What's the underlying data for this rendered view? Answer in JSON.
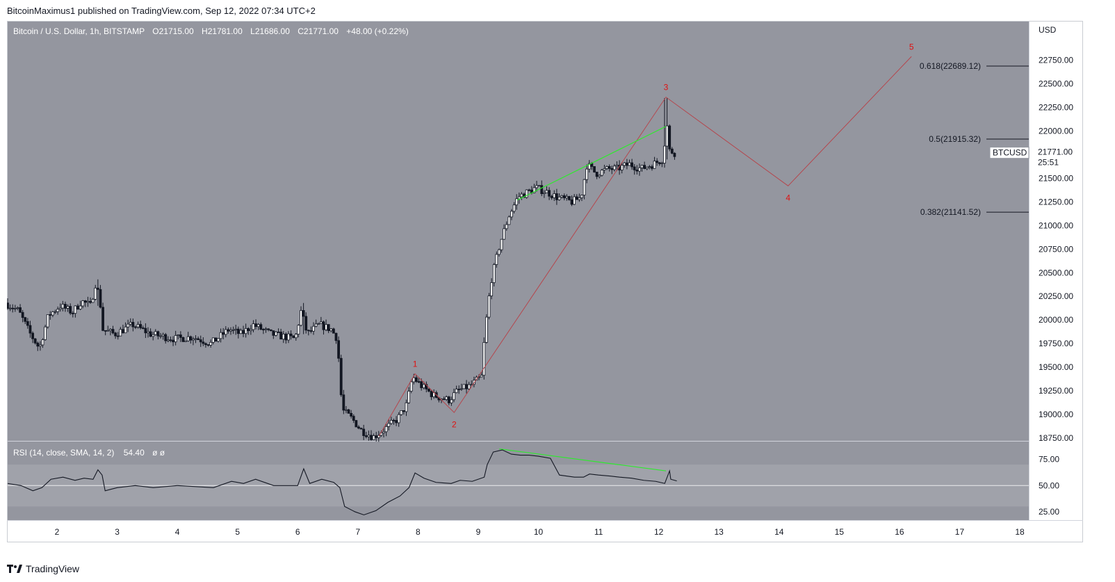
{
  "publisher": "BitcoinMaximus1 published on TradingView.com, Sep 12, 2022 07:34 UTC+2",
  "brand": {
    "label": "TradingView",
    "icon": "tradingview-logo-icon"
  },
  "legend": {
    "symbol": "Bitcoin / U.S. Dollar, 1h, BITSTAMP",
    "o_label": "O",
    "o_value": "21715.00",
    "h_label": "H",
    "h_value": "21781.00",
    "l_label": "L",
    "l_value": "21686.00",
    "c_label": "C",
    "c_value": "21771.00",
    "change": "+48.00 (+0.22%)"
  },
  "colors": {
    "pane_bg": "#94969f",
    "rsi_band": "#a0a2aa",
    "candle": "#131722",
    "wave": "#b5464d",
    "wave_label": "#e01010",
    "divergence": "#2eea2e",
    "grid_text": "#131722"
  },
  "chart_data": {
    "type": "candlestick",
    "title": "Bitcoin / U.S. Dollar, 1h, BITSTAMP",
    "currency_label": "USD",
    "price_axis": {
      "range": [
        18720,
        23160
      ],
      "ticks": [
        "18750.00",
        "19000.00",
        "19250.00",
        "19500.00",
        "19750.00",
        "20000.00",
        "20250.00",
        "20500.00",
        "20750.00",
        "21000.00",
        "21250.00",
        "21500.00",
        "21750.00",
        "22000.00",
        "22250.00",
        "22500.00",
        "22750.00"
      ]
    },
    "x_axis": {
      "range": [
        1.18,
        18.15
      ],
      "ticks": [
        "2",
        "3",
        "4",
        "5",
        "6",
        "7",
        "8",
        "9",
        "10",
        "11",
        "12",
        "13",
        "14",
        "15",
        "16",
        "17",
        "18"
      ]
    },
    "last_price": {
      "symbol": "BTCUSD",
      "value": "21771.00",
      "countdown": "25:51",
      "price": 21771
    },
    "price_path": [
      [
        1.18,
        20180
      ],
      [
        1.4,
        20100
      ],
      [
        1.6,
        19850
      ],
      [
        1.75,
        19700
      ],
      [
        1.9,
        20050
      ],
      [
        2.1,
        20150
      ],
      [
        2.3,
        20080
      ],
      [
        2.45,
        20200
      ],
      [
        2.6,
        20150
      ],
      [
        2.68,
        20380
      ],
      [
        2.75,
        20250
      ],
      [
        2.8,
        19900
      ],
      [
        3.0,
        19850
      ],
      [
        3.3,
        19950
      ],
      [
        3.6,
        19850
      ],
      [
        4.0,
        19800
      ],
      [
        4.3,
        19820
      ],
      [
        4.6,
        19750
      ],
      [
        4.9,
        19900
      ],
      [
        5.1,
        19850
      ],
      [
        5.3,
        19950
      ],
      [
        5.6,
        19850
      ],
      [
        6.0,
        19800
      ],
      [
        6.1,
        20100
      ],
      [
        6.2,
        19850
      ],
      [
        6.4,
        19950
      ],
      [
        6.6,
        19900
      ],
      [
        6.7,
        19800
      ],
      [
        6.78,
        19050
      ],
      [
        6.95,
        18950
      ],
      [
        7.1,
        18830
      ],
      [
        7.3,
        18760
      ],
      [
        7.5,
        18850
      ],
      [
        7.7,
        18950
      ],
      [
        7.85,
        19100
      ],
      [
        7.95,
        19400
      ],
      [
        8.1,
        19300
      ],
      [
        8.3,
        19200
      ],
      [
        8.55,
        19150
      ],
      [
        8.7,
        19250
      ],
      [
        8.9,
        19300
      ],
      [
        9.1,
        19400
      ],
      [
        9.15,
        19850
      ],
      [
        9.25,
        20400
      ],
      [
        9.4,
        20800
      ],
      [
        9.55,
        21100
      ],
      [
        9.7,
        21300
      ],
      [
        9.85,
        21350
      ],
      [
        10.0,
        21400
      ],
      [
        10.2,
        21350
      ],
      [
        10.35,
        21300
      ],
      [
        10.6,
        21250
      ],
      [
        10.75,
        21300
      ],
      [
        10.85,
        21650
      ],
      [
        11.0,
        21550
      ],
      [
        11.2,
        21600
      ],
      [
        11.35,
        21600
      ],
      [
        11.55,
        21650
      ],
      [
        11.75,
        21600
      ],
      [
        11.95,
        21650
      ],
      [
        12.1,
        21700
      ],
      [
        12.18,
        22050
      ],
      [
        12.2,
        21800
      ],
      [
        12.3,
        21771
      ]
    ],
    "candle_volatility": 60,
    "notable_wicks": [
      {
        "x": 12.12,
        "high": 22350,
        "low": 21700
      },
      {
        "x": 2.68,
        "high": 20430,
        "low": 20150
      },
      {
        "x": 6.1,
        "high": 20180,
        "low": 19850
      }
    ],
    "elliott_wave": {
      "points": [
        {
          "label": "",
          "x": 7.35,
          "y": 18770
        },
        {
          "label": "1",
          "x": 7.95,
          "y": 19430
        },
        {
          "label": "2",
          "x": 8.6,
          "y": 19020
        },
        {
          "label": "3",
          "x": 12.12,
          "y": 22360
        },
        {
          "label": "4",
          "x": 14.15,
          "y": 21420
        },
        {
          "label": "5",
          "x": 16.2,
          "y": 22790
        }
      ]
    },
    "fib_levels": [
      {
        "label": "0.618(22689.12)",
        "ratio": 0.618,
        "price": 22689.12
      },
      {
        "label": "0.5(21915.32)",
        "ratio": 0.5,
        "price": 21915.32
      },
      {
        "label": "0.382(21141.52)",
        "ratio": 0.382,
        "price": 21141.52
      }
    ],
    "price_divergence_line": [
      {
        "x": 9.65,
        "y": 21270
      },
      {
        "x": 12.12,
        "y": 22050
      }
    ],
    "rsi": {
      "legend": "RSI (14, close, SMA, 14, 2)",
      "value": "54.40",
      "extra": "ø ø",
      "range": [
        17,
        92
      ],
      "ticks": [
        "25.00",
        "50.00",
        "75.00"
      ],
      "band": [
        30,
        70
      ],
      "mid": 50,
      "path": [
        [
          1.18,
          52
        ],
        [
          1.4,
          50
        ],
        [
          1.6,
          45
        ],
        [
          1.75,
          48
        ],
        [
          1.9,
          56
        ],
        [
          2.1,
          58
        ],
        [
          2.3,
          55
        ],
        [
          2.45,
          57
        ],
        [
          2.6,
          56
        ],
        [
          2.68,
          65
        ],
        [
          2.75,
          60
        ],
        [
          2.8,
          45
        ],
        [
          3.0,
          48
        ],
        [
          3.3,
          50
        ],
        [
          3.6,
          48
        ],
        [
          4.0,
          50
        ],
        [
          4.3,
          49
        ],
        [
          4.6,
          48
        ],
        [
          4.9,
          54
        ],
        [
          5.1,
          52
        ],
        [
          5.3,
          56
        ],
        [
          5.6,
          50
        ],
        [
          6.0,
          50
        ],
        [
          6.1,
          66
        ],
        [
          6.2,
          52
        ],
        [
          6.4,
          56
        ],
        [
          6.6,
          53
        ],
        [
          6.7,
          48
        ],
        [
          6.78,
          30
        ],
        [
          6.95,
          25
        ],
        [
          7.1,
          22
        ],
        [
          7.3,
          26
        ],
        [
          7.5,
          34
        ],
        [
          7.7,
          40
        ],
        [
          7.85,
          48
        ],
        [
          7.95,
          62
        ],
        [
          8.1,
          57
        ],
        [
          8.3,
          53
        ],
        [
          8.55,
          52
        ],
        [
          8.7,
          55
        ],
        [
          8.9,
          54
        ],
        [
          9.1,
          58
        ],
        [
          9.15,
          70
        ],
        [
          9.25,
          82
        ],
        [
          9.4,
          84
        ],
        [
          9.55,
          80
        ],
        [
          9.7,
          79
        ],
        [
          9.85,
          79
        ],
        [
          10.0,
          78
        ],
        [
          10.2,
          76
        ],
        [
          10.35,
          60
        ],
        [
          10.6,
          58
        ],
        [
          10.75,
          58
        ],
        [
          10.85,
          61
        ],
        [
          11.0,
          60
        ],
        [
          11.2,
          59
        ],
        [
          11.35,
          58
        ],
        [
          11.55,
          57
        ],
        [
          11.75,
          55
        ],
        [
          11.95,
          54
        ],
        [
          12.1,
          52
        ],
        [
          12.18,
          64
        ],
        [
          12.2,
          56
        ],
        [
          12.3,
          54.4
        ]
      ],
      "divergence_line": [
        {
          "x": 9.35,
          "y": 85
        },
        {
          "x": 12.12,
          "y": 64
        }
      ]
    }
  }
}
